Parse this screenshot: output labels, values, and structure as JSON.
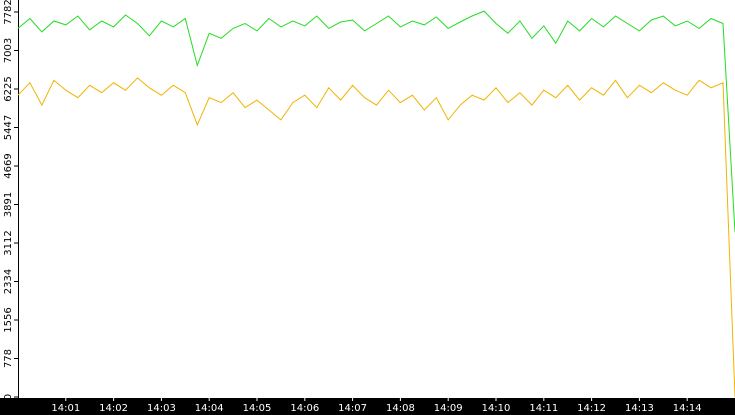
{
  "chart_data": {
    "type": "line",
    "x": [
      840,
      840.25,
      840.5,
      840.75,
      841,
      841.25,
      841.5,
      841.75,
      842,
      842.25,
      842.5,
      842.75,
      843,
      843.25,
      843.5,
      843.75,
      844,
      844.25,
      844.5,
      844.75,
      845,
      845.25,
      845.5,
      845.75,
      846,
      846.25,
      846.5,
      846.75,
      847,
      847.25,
      847.5,
      847.75,
      848,
      848.25,
      848.5,
      848.75,
      849,
      849.25,
      849.5,
      849.75,
      850,
      850.25,
      850.5,
      850.75,
      851,
      851.25,
      851.5,
      851.75,
      852,
      852.25,
      852.5,
      852.75,
      853,
      853.25,
      853.5,
      853.75,
      854,
      854.25,
      854.5,
      854.75,
      855
    ],
    "series": [
      {
        "color": "#22dd22",
        "values": [
          7450,
          7650,
          7380,
          7600,
          7520,
          7700,
          7420,
          7600,
          7480,
          7720,
          7550,
          7300,
          7600,
          7480,
          7650,
          6700,
          7350,
          7250,
          7450,
          7550,
          7400,
          7650,
          7480,
          7600,
          7500,
          7700,
          7450,
          7580,
          7620,
          7400,
          7550,
          7700,
          7480,
          7600,
          7520,
          7680,
          7450,
          7580,
          7700,
          7800,
          7550,
          7350,
          7600,
          7250,
          7500,
          7150,
          7600,
          7400,
          7650,
          7480,
          7700,
          7550,
          7400,
          7620,
          7700,
          7500,
          7600,
          7450,
          7650,
          7550,
          3330
        ]
      },
      {
        "color": "#f0b400",
        "values": [
          6100,
          6350,
          5900,
          6400,
          6200,
          6050,
          6300,
          6150,
          6350,
          6200,
          6450,
          6250,
          6100,
          6300,
          6150,
          5500,
          6050,
          5950,
          6150,
          5850,
          6000,
          5800,
          5600,
          5950,
          6100,
          5850,
          6250,
          6000,
          6300,
          6050,
          5900,
          6200,
          5950,
          6100,
          5800,
          6050,
          5600,
          5900,
          6100,
          6000,
          6250,
          5950,
          6150,
          5900,
          6200,
          6050,
          6300,
          6000,
          6250,
          6100,
          6400,
          6050,
          6300,
          6150,
          6350,
          6200,
          6100,
          6400,
          6250,
          6350,
          0
        ]
      }
    ],
    "xlim": [
      840,
      855
    ],
    "xticks": [
      {
        "value": 841,
        "label": "14:01"
      },
      {
        "value": 842,
        "label": "14:02"
      },
      {
        "value": 843,
        "label": "14:03"
      },
      {
        "value": 844,
        "label": "14:04"
      },
      {
        "value": 845,
        "label": "14:05"
      },
      {
        "value": 846,
        "label": "14:06"
      },
      {
        "value": 847,
        "label": "14:07"
      },
      {
        "value": 848,
        "label": "14:08"
      },
      {
        "value": 849,
        "label": "14:09"
      },
      {
        "value": 850,
        "label": "14:10"
      },
      {
        "value": 851,
        "label": "14:11"
      },
      {
        "value": 852,
        "label": "14:12"
      },
      {
        "value": 853,
        "label": "14:13"
      },
      {
        "value": 854,
        "label": "14:14"
      }
    ],
    "ylim": [
      0,
      8024
    ],
    "yticks": [
      0,
      778,
      1556,
      2334,
      3112,
      3891,
      4669,
      5447,
      6225,
      7003,
      7782
    ]
  }
}
